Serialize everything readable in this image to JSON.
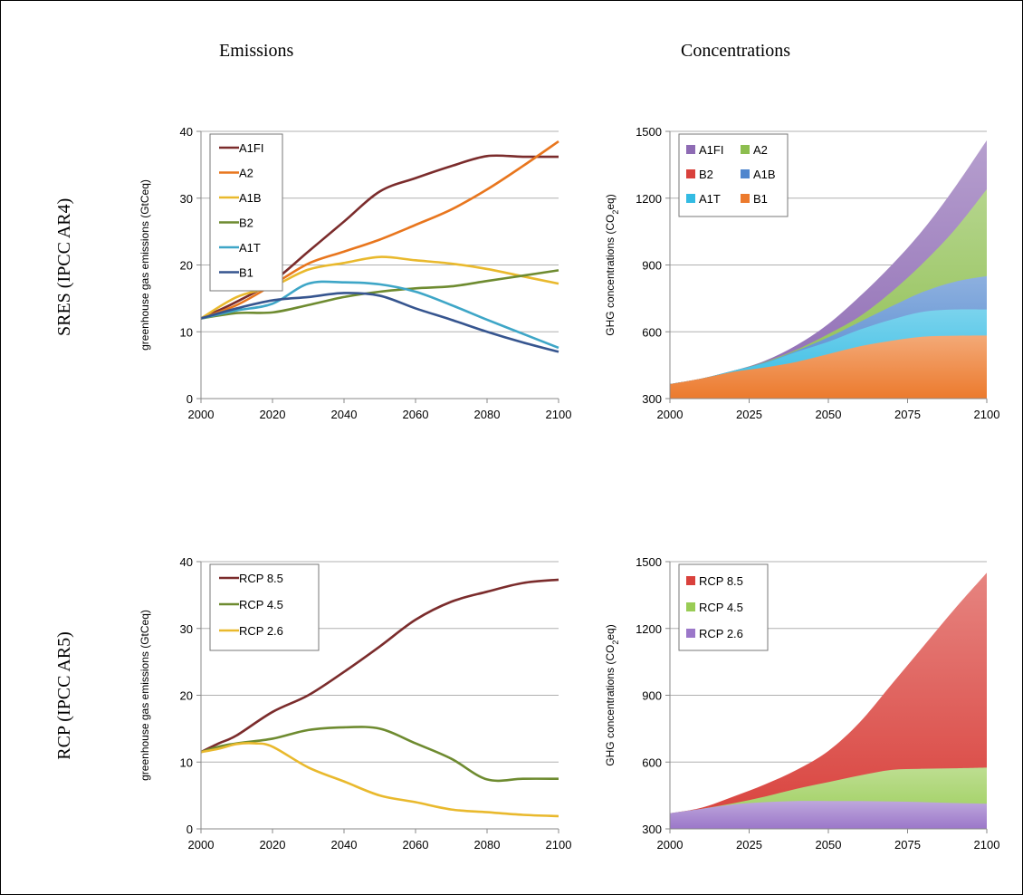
{
  "headers": {
    "col_left": "Emissions",
    "col_right": "Concentrations",
    "row_top": "SRES (IPCC AR4)",
    "row_bottom": "RCP (IPCC AR5)"
  },
  "chart_data": [
    {
      "id": "sres-emissions",
      "type": "line",
      "ylabel": "greenhouse gas emissions (GtCeq)",
      "xlim": [
        2000,
        2100
      ],
      "ylim": [
        0,
        40
      ],
      "xticks": [
        2000,
        2020,
        2040,
        2060,
        2080,
        2100
      ],
      "yticks": [
        0,
        10,
        20,
        30,
        40
      ],
      "grid": true,
      "legend": "top-left",
      "series": [
        {
          "name": "A1FI",
          "color": "#7B2C2C",
          "x": [
            2000,
            2010,
            2020,
            2030,
            2040,
            2050,
            2060,
            2070,
            2080,
            2090,
            2100
          ],
          "y": [
            12,
            14.5,
            17.5,
            22,
            26.5,
            31,
            33,
            34.8,
            36.3,
            36.2,
            36.2
          ]
        },
        {
          "name": "A2",
          "color": "#E8761E",
          "x": [
            2000,
            2010,
            2020,
            2030,
            2040,
            2050,
            2060,
            2070,
            2080,
            2090,
            2100
          ],
          "y": [
            12,
            14,
            17,
            20.2,
            22,
            23.8,
            26,
            28.3,
            31.3,
            34.8,
            38.5
          ]
        },
        {
          "name": "A1B",
          "color": "#E9B92D",
          "x": [
            2000,
            2010,
            2020,
            2030,
            2040,
            2050,
            2060,
            2070,
            2080,
            2090,
            2100
          ],
          "y": [
            12,
            15.2,
            16.8,
            19.3,
            20.3,
            21.2,
            20.7,
            20.2,
            19.4,
            18.3,
            17.2
          ]
        },
        {
          "name": "B2",
          "color": "#6E8B30",
          "x": [
            2000,
            2010,
            2020,
            2030,
            2040,
            2050,
            2060,
            2070,
            2080,
            2090,
            2100
          ],
          "y": [
            12,
            12.8,
            12.9,
            14,
            15.2,
            16,
            16.5,
            16.8,
            17.6,
            18.4,
            19.2
          ]
        },
        {
          "name": "A1T",
          "color": "#3EA6C7",
          "x": [
            2000,
            2010,
            2020,
            2030,
            2040,
            2050,
            2060,
            2070,
            2080,
            2090,
            2100
          ],
          "y": [
            12,
            13.2,
            14.2,
            17.2,
            17.4,
            17.1,
            16,
            14,
            11.8,
            9.7,
            7.6
          ]
        },
        {
          "name": "B1",
          "color": "#36558F",
          "x": [
            2000,
            2010,
            2020,
            2030,
            2040,
            2050,
            2060,
            2070,
            2080,
            2090,
            2100
          ],
          "y": [
            12,
            13.5,
            14.7,
            15.2,
            15.8,
            15.4,
            13.5,
            11.8,
            10,
            8.4,
            7
          ]
        }
      ]
    },
    {
      "id": "sres-concentrations",
      "type": "area",
      "ylabel": "GHG concentrations (CO",
      "ylabel_sub": "2",
      "ylabel_tail": "eq)",
      "xlim": [
        2000,
        2100
      ],
      "ylim": [
        300,
        1500
      ],
      "xticks": [
        2000,
        2025,
        2050,
        2075,
        2100
      ],
      "yticks": [
        300,
        600,
        900,
        1200,
        1500
      ],
      "grid": true,
      "legend": "top-left",
      "legend_order": [
        "A1FI",
        "A2",
        "B2",
        "A1B",
        "A1T",
        "B1"
      ],
      "x": [
        2000,
        2010,
        2020,
        2030,
        2040,
        2050,
        2060,
        2070,
        2080,
        2090,
        2100
      ],
      "series": [
        {
          "name": "A1FI",
          "color": "#8E6BB4",
          "values": [
            365,
            390,
            425,
            470,
            540,
            635,
            760,
            900,
            1060,
            1250,
            1460
          ]
        },
        {
          "name": "A2",
          "color": "#8DBE4F",
          "values": [
            365,
            390,
            425,
            465,
            520,
            590,
            670,
            780,
            910,
            1060,
            1240
          ]
        },
        {
          "name": "B2",
          "color": "#D9413C",
          "values": [
            365,
            390,
            425,
            460,
            505,
            555,
            605,
            655,
            705,
            750,
            790
          ]
        },
        {
          "name": "A1B",
          "color": "#4F86CE",
          "values": [
            365,
            390,
            425,
            462,
            515,
            575,
            645,
            715,
            780,
            825,
            850
          ]
        },
        {
          "name": "A1T",
          "color": "#33BBE3",
          "values": [
            365,
            390,
            425,
            460,
            510,
            555,
            610,
            655,
            690,
            700,
            700
          ]
        },
        {
          "name": "B1",
          "color": "#EC7A2D",
          "values": [
            365,
            390,
            420,
            440,
            465,
            500,
            535,
            560,
            578,
            582,
            583
          ]
        }
      ]
    },
    {
      "id": "rcp-emissions",
      "type": "line",
      "ylabel": "greenhouse gas emissions (GtCeq)",
      "xlim": [
        2000,
        2100
      ],
      "ylim": [
        0,
        40
      ],
      "xticks": [
        2000,
        2020,
        2040,
        2060,
        2080,
        2100
      ],
      "yticks": [
        0,
        10,
        20,
        30,
        40
      ],
      "grid": true,
      "legend": "top-left",
      "series": [
        {
          "name": "RCP 8.5",
          "color": "#7B2C2C",
          "x": [
            2000,
            2005,
            2010,
            2020,
            2030,
            2040,
            2050,
            2060,
            2070,
            2080,
            2090,
            2100
          ],
          "y": [
            11.5,
            12.8,
            14,
            17.5,
            20,
            23.5,
            27.3,
            31.3,
            34,
            35.5,
            36.8,
            37.3
          ]
        },
        {
          "name": "RCP 4.5",
          "color": "#6E8B30",
          "x": [
            2000,
            2005,
            2010,
            2020,
            2030,
            2040,
            2050,
            2060,
            2070,
            2080,
            2090,
            2100
          ],
          "y": [
            11.5,
            12.3,
            12.8,
            13.5,
            14.8,
            15.2,
            15,
            12.8,
            10.5,
            7.4,
            7.5,
            7.5
          ]
        },
        {
          "name": "RCP 2.6",
          "color": "#E9B92D",
          "x": [
            2000,
            2005,
            2010,
            2015,
            2020,
            2030,
            2040,
            2050,
            2060,
            2070,
            2080,
            2090,
            2100
          ],
          "y": [
            11.5,
            12,
            12.7,
            12.8,
            12.3,
            9.2,
            7.1,
            5,
            4,
            2.9,
            2.5,
            2.1,
            1.9
          ]
        }
      ]
    },
    {
      "id": "rcp-concentrations",
      "type": "area",
      "ylabel": "GHG concentrations (CO",
      "ylabel_sub": "2",
      "ylabel_tail": "eq)",
      "xlim": [
        2000,
        2100
      ],
      "ylim": [
        300,
        1500
      ],
      "xticks": [
        2000,
        2025,
        2050,
        2075,
        2100
      ],
      "yticks": [
        300,
        600,
        900,
        1200,
        1500
      ],
      "grid": true,
      "legend": "top-left",
      "legend_order": [
        "RCP 8.5",
        "RCP 4.5",
        "RCP 2.6"
      ],
      "x": [
        2000,
        2010,
        2020,
        2030,
        2040,
        2050,
        2060,
        2070,
        2080,
        2090,
        2100
      ],
      "series": [
        {
          "name": "RCP 8.5",
          "color": "#D9413C",
          "values": [
            370,
            395,
            445,
            500,
            565,
            650,
            780,
            950,
            1120,
            1290,
            1450
          ]
        },
        {
          "name": "RCP 4.5",
          "color": "#99CC55",
          "values": [
            370,
            390,
            415,
            445,
            480,
            510,
            540,
            565,
            570,
            572,
            575
          ]
        },
        {
          "name": "RCP 2.6",
          "color": "#9B77C9",
          "values": [
            370,
            390,
            410,
            420,
            425,
            425,
            425,
            423,
            420,
            416,
            413
          ]
        }
      ]
    }
  ]
}
